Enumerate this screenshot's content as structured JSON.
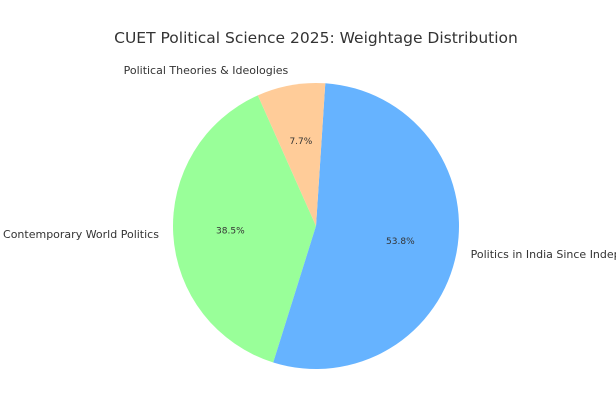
{
  "chart_data": {
    "type": "pie",
    "title": "CUET Political Science 2025: Weightage Distribution",
    "slices": [
      {
        "label": "Contemporary World Politics",
        "value": 38.5,
        "value_label": "38.5%",
        "color": "#99ff99"
      },
      {
        "label": "Politics in India Since Independence",
        "value": 53.8,
        "value_label": "53.8%",
        "color": "#66b3ff"
      },
      {
        "label": "Political Theories & Ideologies",
        "value": 7.7,
        "value_label": "7.7%",
        "color": "#ffcc99"
      }
    ],
    "start_angle_deg": 114,
    "direction": "counterclockwise",
    "legend": "none"
  }
}
